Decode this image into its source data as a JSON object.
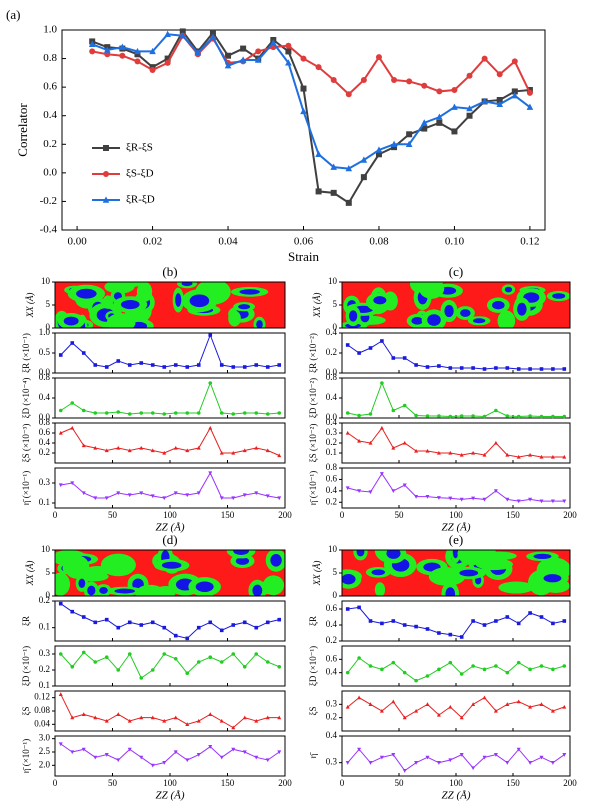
{
  "chart_data": [
    {
      "type": "line",
      "title": "(a)",
      "xlabel": "Strain",
      "ylabel": "Correlator",
      "xlim": [
        -0.004,
        0.124
      ],
      "ylim": [
        -0.4,
        1.0
      ],
      "xticks": [
        {
          "value": 0,
          "label": "0.00"
        },
        {
          "value": 0.02,
          "label": "0.02"
        },
        {
          "value": 0.04,
          "label": "0.04"
        },
        {
          "value": 0.06,
          "label": "0.06"
        },
        {
          "value": 0.08,
          "label": "0.08"
        },
        {
          "value": 0.1,
          "label": "0.10"
        },
        {
          "value": 0.12,
          "label": "0.12"
        }
      ],
      "yticks": [
        -0.4,
        -0.2,
        {
          "value": 0,
          "label": "0.0"
        },
        0.2,
        0.4,
        0.6,
        0.8,
        {
          "value": 1,
          "label": "1.0"
        }
      ],
      "x": [
        0.004,
        0.008,
        0.012,
        0.016,
        0.02,
        0.024,
        0.028,
        0.032,
        0.036,
        0.04,
        0.044,
        0.048,
        0.052,
        0.056,
        0.06,
        0.064,
        0.068,
        0.072,
        0.076,
        0.08,
        0.084,
        0.088,
        0.092,
        0.096,
        0.1,
        0.104,
        0.108,
        0.112,
        0.116,
        0.12
      ],
      "series": [
        {
          "name": "ξR-ξS",
          "color": "#404040",
          "marker": "square",
          "values": [
            0.92,
            0.88,
            0.87,
            0.83,
            0.74,
            0.8,
            0.99,
            0.85,
            0.98,
            0.82,
            0.87,
            0.8,
            0.93,
            0.85,
            0.59,
            -0.13,
            -0.14,
            -0.21,
            -0.03,
            0.13,
            0.18,
            0.27,
            0.31,
            0.35,
            0.29,
            0.4,
            0.5,
            0.51,
            0.57,
            0.58
          ]
        },
        {
          "name": "ξS-ξD",
          "color": "#e03c3c",
          "marker": "circle",
          "values": [
            0.85,
            0.83,
            0.82,
            0.78,
            0.72,
            0.77,
            0.96,
            0.83,
            0.94,
            0.77,
            0.78,
            0.85,
            0.88,
            0.89,
            0.8,
            0.74,
            0.65,
            0.55,
            0.65,
            0.81,
            0.65,
            0.64,
            0.61,
            0.57,
            0.58,
            0.68,
            0.8,
            0.69,
            0.78,
            0.56
          ]
        },
        {
          "name": "ξR-ξD",
          "color": "#1e6fe0",
          "marker": "triangle",
          "values": [
            0.9,
            0.86,
            0.88,
            0.85,
            0.85,
            0.97,
            0.96,
            0.84,
            0.95,
            0.75,
            0.79,
            0.79,
            0.91,
            0.77,
            0.43,
            0.13,
            0.04,
            0.03,
            0.09,
            0.16,
            0.2,
            0.2,
            0.35,
            0.39,
            0.46,
            0.45,
            0.5,
            0.48,
            0.54,
            0.46
          ]
        }
      ]
    },
    {
      "type": "stack",
      "title": "(b)",
      "xlabel": "ZZ (Å)",
      "xlim": [
        0,
        200
      ],
      "xticks": [
        0,
        50,
        100,
        150,
        200
      ],
      "x": [
        5,
        15,
        25,
        35,
        45,
        55,
        65,
        75,
        85,
        95,
        105,
        115,
        125,
        135,
        145,
        155,
        165,
        175,
        185,
        195
      ],
      "map": {
        "ylabel": "XX (Å)",
        "ylim": [
          0,
          10
        ],
        "yticks": [
          0,
          5,
          10
        ]
      },
      "rows": [
        {
          "ylabel": "ξR (×10⁻¹)",
          "color": "#1a1adc",
          "marker": "square",
          "ylim": [
            0,
            1
          ],
          "yticks": [
            {
              "value": 0,
              "label": "0.0"
            },
            0.5,
            {
              "value": 1,
              "label": "1.0"
            }
          ],
          "values": [
            0.45,
            0.75,
            0.5,
            0.2,
            0.15,
            0.3,
            0.2,
            0.25,
            0.2,
            0.15,
            0.2,
            0.15,
            0.2,
            0.95,
            0.2,
            0.15,
            0.15,
            0.2,
            0.15,
            0.2
          ]
        },
        {
          "ylabel": "ξD (×10⁻⁴)",
          "color": "#22cc22",
          "marker": "circle",
          "ylim": [
            0,
            0.8
          ],
          "yticks": [
            {
              "value": 0,
              "label": "0.0"
            },
            0.4,
            0.8
          ],
          "values": [
            0.15,
            0.3,
            0.15,
            0.1,
            0.1,
            0.12,
            0.08,
            0.1,
            0.1,
            0.08,
            0.1,
            0.1,
            0.1,
            0.7,
            0.1,
            0.08,
            0.1,
            0.1,
            0.08,
            0.1
          ]
        },
        {
          "ylabel": "ξS (×10⁻³)",
          "color": "#e82020",
          "marker": "triangle",
          "ylim": [
            0,
            0.8
          ],
          "yticks": [
            0.2,
            0.4,
            0.6,
            0.8
          ],
          "values": [
            0.6,
            0.7,
            0.35,
            0.3,
            0.25,
            0.3,
            0.25,
            0.3,
            0.25,
            0.2,
            0.3,
            0.25,
            0.3,
            0.7,
            0.2,
            0.2,
            0.25,
            0.3,
            0.25,
            0.15
          ]
        },
        {
          "ylabel": "η̄ (×10⁻¹)",
          "color": "#9933ff",
          "marker": "tri-down",
          "ylim": [
            0.05,
            0.45
          ],
          "yticks": [
            0.1,
            0.3
          ],
          "values": [
            0.28,
            0.3,
            0.2,
            0.15,
            0.15,
            0.2,
            0.18,
            0.2,
            0.17,
            0.15,
            0.2,
            0.18,
            0.2,
            0.4,
            0.15,
            0.15,
            0.18,
            0.2,
            0.17,
            0.15
          ]
        }
      ]
    },
    {
      "type": "stack",
      "title": "(c)",
      "xlabel": "ZZ (Å)",
      "xlim": [
        0,
        200
      ],
      "xticks": [
        0,
        50,
        100,
        150,
        200
      ],
      "x": [
        5,
        15,
        25,
        35,
        45,
        55,
        65,
        75,
        85,
        95,
        105,
        115,
        125,
        135,
        145,
        155,
        165,
        175,
        185,
        195
      ],
      "map": {
        "ylabel": "XX (Å)",
        "ylim": [
          0,
          10
        ],
        "yticks": [
          0,
          5,
          10
        ]
      },
      "rows": [
        {
          "ylabel": "ξR (×10⁻²)",
          "color": "#1a1adc",
          "marker": "square",
          "ylim": [
            0,
            0.4
          ],
          "yticks": [
            {
              "value": 0,
              "label": "0.0"
            },
            0.2,
            0.4
          ],
          "values": [
            0.28,
            0.2,
            0.25,
            0.32,
            0.15,
            0.15,
            0.08,
            0.06,
            0.07,
            0.05,
            0.05,
            0.05,
            0.04,
            0.05,
            0.05,
            0.04,
            0.04,
            0.04,
            0.04,
            0.04
          ]
        },
        {
          "ylabel": "ξD (×10⁻²)",
          "color": "#22cc22",
          "marker": "circle",
          "ylim": [
            0,
            0.8
          ],
          "yticks": [
            {
              "value": 0,
              "label": "0.0"
            },
            0.4,
            0.8
          ],
          "values": [
            0.1,
            0.05,
            0.08,
            0.7,
            0.15,
            0.25,
            0.05,
            0.04,
            0.04,
            0.03,
            0.04,
            0.04,
            0.03,
            0.15,
            0.04,
            0.03,
            0.04,
            0.03,
            0.03,
            0.03
          ]
        },
        {
          "ylabel": "ξS (×10⁻²)",
          "color": "#e82020",
          "marker": "triangle",
          "ylim": [
            0,
            0.4
          ],
          "yticks": [
            0.1,
            0.2,
            0.3,
            0.4
          ],
          "values": [
            0.3,
            0.22,
            0.2,
            0.35,
            0.15,
            0.2,
            0.12,
            0.12,
            0.1,
            0.1,
            0.08,
            0.1,
            0.08,
            0.2,
            0.08,
            0.06,
            0.08,
            0.06,
            0.06,
            0.06
          ]
        },
        {
          "ylabel": "η̄ (×10⁻¹)",
          "color": "#9933ff",
          "marker": "tri-down",
          "ylim": [
            0.1,
            0.8
          ],
          "yticks": [
            0.2,
            0.4,
            0.6,
            0.8
          ],
          "values": [
            0.45,
            0.4,
            0.38,
            0.7,
            0.4,
            0.5,
            0.3,
            0.3,
            0.28,
            0.27,
            0.25,
            0.27,
            0.25,
            0.4,
            0.25,
            0.22,
            0.25,
            0.22,
            0.22,
            0.22
          ]
        }
      ]
    },
    {
      "type": "stack",
      "title": "(d)",
      "xlabel": "ZZ (Å)",
      "xlim": [
        0,
        200
      ],
      "xticks": [
        0,
        50,
        100,
        150,
        200
      ],
      "x": [
        5,
        15,
        25,
        35,
        45,
        55,
        65,
        75,
        85,
        95,
        105,
        115,
        125,
        135,
        145,
        155,
        165,
        175,
        185,
        195
      ],
      "map": {
        "ylabel": "XX (Å)",
        "ylim": [
          0,
          10
        ],
        "yticks": [
          0,
          5,
          10
        ]
      },
      "rows": [
        {
          "ylabel": "ξR",
          "color": "#1a1adc",
          "marker": "square",
          "ylim": [
            0.05,
            0.2
          ],
          "yticks": [
            0.1,
            0.2
          ],
          "values": [
            0.19,
            0.16,
            0.14,
            0.12,
            0.13,
            0.1,
            0.12,
            0.11,
            0.12,
            0.1,
            0.07,
            0.06,
            0.1,
            0.12,
            0.09,
            0.11,
            0.12,
            0.1,
            0.12,
            0.13
          ]
        },
        {
          "ylabel": "ξD (×10⁻¹)",
          "color": "#22cc22",
          "marker": "circle",
          "ylim": [
            0.1,
            0.35
          ],
          "yticks": [
            0.1,
            0.2,
            0.3
          ],
          "values": [
            0.3,
            0.22,
            0.31,
            0.25,
            0.28,
            0.2,
            0.3,
            0.15,
            0.2,
            0.3,
            0.27,
            0.18,
            0.25,
            0.28,
            0.25,
            0.3,
            0.22,
            0.3,
            0.25,
            0.22
          ]
        },
        {
          "ylabel": "ξS",
          "color": "#e82020",
          "marker": "triangle",
          "ylim": [
            0.02,
            0.14
          ],
          "yticks": [
            0.04,
            0.08,
            0.12
          ],
          "values": [
            0.13,
            0.06,
            0.07,
            0.06,
            0.05,
            0.07,
            0.05,
            0.06,
            0.06,
            0.05,
            0.06,
            0.04,
            0.05,
            0.07,
            0.05,
            0.03,
            0.06,
            0.05,
            0.06,
            0.06
          ]
        },
        {
          "ylabel": "η̄ (×10⁻¹)",
          "color": "#9933ff",
          "marker": "tri-down",
          "ylim": [
            1.6,
            3.1
          ],
          "yticks": [
            {
              "value": 2,
              "label": "2.0"
            },
            2.5,
            {
              "value": 3,
              "label": "3.0"
            }
          ],
          "values": [
            2.8,
            2.5,
            2.6,
            2.3,
            2.4,
            2.2,
            2.6,
            2.3,
            2.0,
            2.1,
            2.5,
            2.2,
            2.4,
            2.7,
            2.3,
            2.6,
            2.5,
            2.3,
            2.2,
            2.5
          ]
        }
      ]
    },
    {
      "type": "stack",
      "title": "(e)",
      "xlabel": "ZZ (Å)",
      "xlim": [
        0,
        200
      ],
      "xticks": [
        0,
        50,
        100,
        150,
        200
      ],
      "x": [
        5,
        15,
        25,
        35,
        45,
        55,
        65,
        75,
        85,
        95,
        105,
        115,
        125,
        135,
        145,
        155,
        165,
        175,
        185,
        195
      ],
      "map": {
        "ylabel": "XX (Å)",
        "ylim": [
          0,
          10
        ],
        "yticks": [
          0,
          5,
          10
        ]
      },
      "rows": [
        {
          "ylabel": "ξR",
          "color": "#1a1adc",
          "marker": "square",
          "ylim": [
            0.2,
            0.7
          ],
          "yticks": [
            0.2,
            0.4,
            0.6
          ],
          "values": [
            0.6,
            0.62,
            0.45,
            0.42,
            0.45,
            0.4,
            0.38,
            0.35,
            0.3,
            0.28,
            0.25,
            0.45,
            0.4,
            0.45,
            0.5,
            0.42,
            0.55,
            0.5,
            0.42,
            0.45
          ]
        },
        {
          "ylabel": "ξD (×10⁻¹)",
          "color": "#22cc22",
          "marker": "circle",
          "ylim": [
            0.2,
            0.8
          ],
          "yticks": [
            0.4,
            0.6
          ],
          "values": [
            0.4,
            0.62,
            0.5,
            0.45,
            0.55,
            0.4,
            0.28,
            0.35,
            0.45,
            0.55,
            0.38,
            0.5,
            0.45,
            0.5,
            0.4,
            0.55,
            0.45,
            0.5,
            0.45,
            0.5
          ]
        },
        {
          "ylabel": "ξS",
          "color": "#e82020",
          "marker": "triangle",
          "ylim": [
            0.1,
            0.4
          ],
          "yticks": [
            0.2,
            0.3
          ],
          "values": [
            0.28,
            0.35,
            0.3,
            0.25,
            0.32,
            0.2,
            0.25,
            0.3,
            0.22,
            0.28,
            0.2,
            0.3,
            0.35,
            0.25,
            0.3,
            0.32,
            0.28,
            0.3,
            0.25,
            0.28
          ]
        },
        {
          "ylabel": "η̄",
          "color": "#9933ff",
          "marker": "tri-down",
          "ylim": [
            0.25,
            0.4
          ],
          "yticks": [
            0.3,
            0.4
          ],
          "values": [
            0.3,
            0.35,
            0.3,
            0.32,
            0.33,
            0.27,
            0.3,
            0.32,
            0.3,
            0.31,
            0.33,
            0.28,
            0.32,
            0.33,
            0.3,
            0.35,
            0.3,
            0.32,
            0.3,
            0.33
          ]
        }
      ]
    }
  ]
}
